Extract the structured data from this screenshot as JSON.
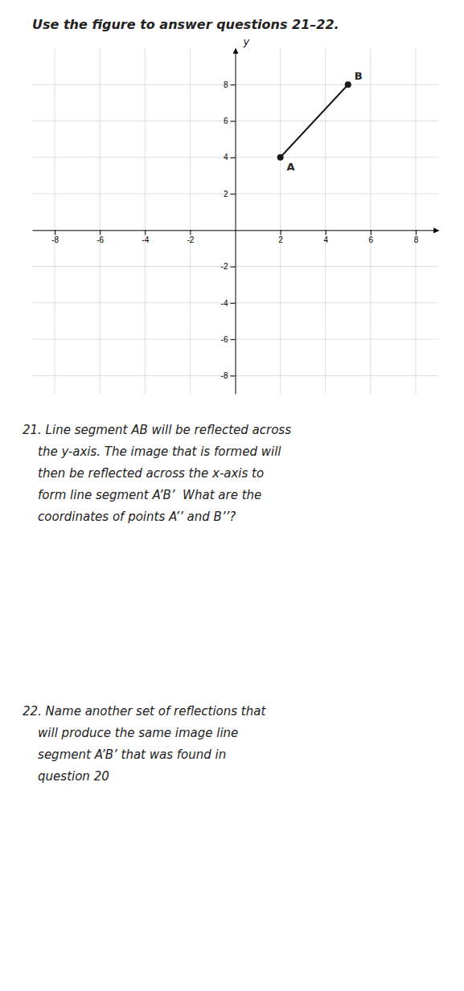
{
  "chart_data": {
    "type": "line",
    "title": "Use the figure to answer questions 21–22.",
    "x": [
      2,
      5
    ],
    "values": [
      4,
      8
    ],
    "color": "#1a1a1a",
    "marker": "circle",
    "point_labels": [
      "A",
      "B"
    ],
    "ylabel": "y",
    "xlim": [
      -9,
      9
    ],
    "ylim": [
      -9,
      10
    ],
    "xticks": [
      -8,
      -6,
      -4,
      -2,
      2,
      4,
      6,
      8
    ],
    "yticks": [
      -8,
      -6,
      -4,
      -2,
      2,
      4,
      6,
      8
    ],
    "grid": true,
    "annotations": [
      [
        "21. Line segment AB will be reflected across",
        "    the y-axis. The image that is formed will",
        "    then be reflected across the x-axis to",
        "    form line segment A’B’  What are the",
        "    coordinates of points A’’ and B’’?"
      ],
      [
        "22. Name another set of reflections that",
        "    will produce the same image line",
        "    segment A’B’ that was found in",
        "    question 20"
      ]
    ]
  }
}
